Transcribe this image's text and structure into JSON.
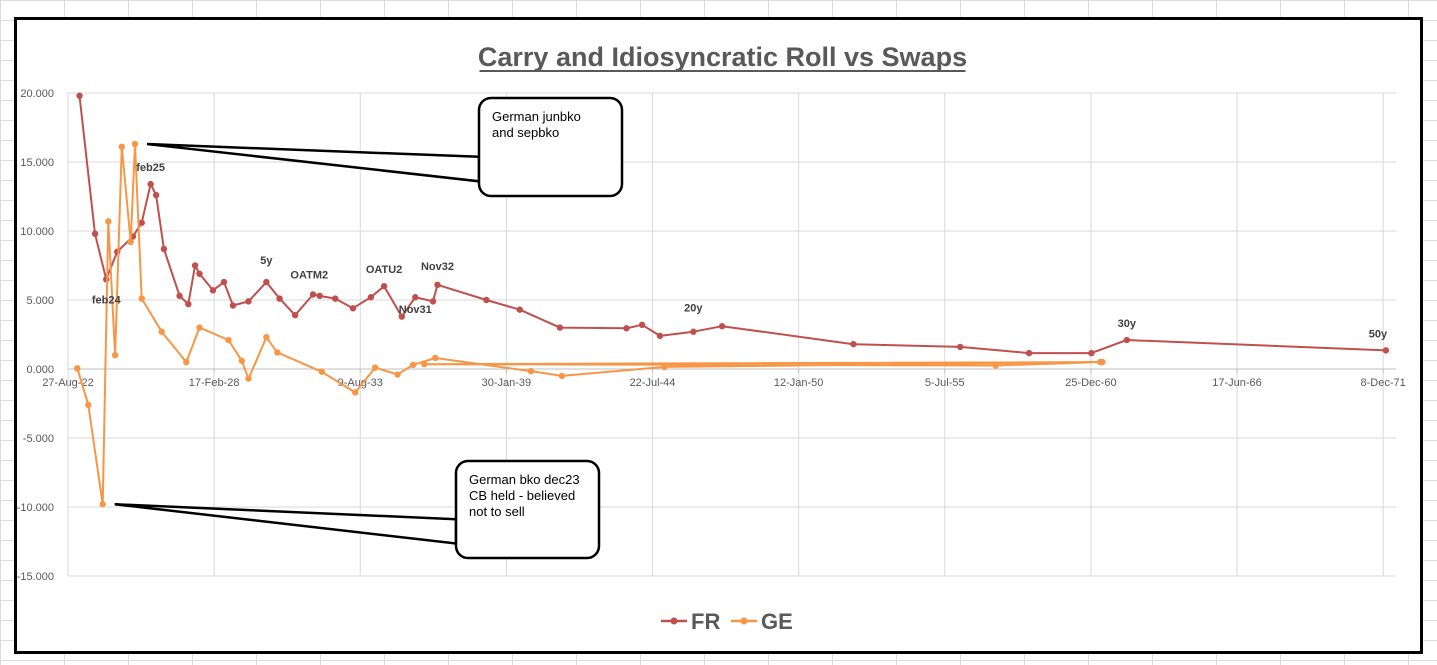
{
  "chart_data": {
    "type": "line",
    "title": "Carry and Idiosyncratic Roll vs Swaps",
    "xlabel": "",
    "ylabel": "",
    "x_axis_type": "date",
    "xlim": [
      "2022-08-27",
      "2072-06-01"
    ],
    "ylim": [
      -15,
      20
    ],
    "x_ticks": [
      "27-Aug-22",
      "17-Feb-28",
      "9-Aug-33",
      "30-Jan-39",
      "22-Jul-44",
      "12-Jan-50",
      "5-Jul-55",
      "25-Dec-60",
      "17-Jun-66",
      "8-Dec-71"
    ],
    "y_ticks": [
      "20.000",
      "15.000",
      "10.000",
      "5.000",
      "0.000",
      "-5.000",
      "-10.000",
      "-15.000"
    ],
    "gridlines": "both",
    "legend_position": "bottom",
    "series": [
      {
        "name": "FR",
        "color": "#c0504d",
        "points": [
          [
            "2023-02-01",
            19.8
          ],
          [
            "2023-09-01",
            9.8
          ],
          [
            "2024-02-01",
            6.5
          ],
          [
            "2024-07-01",
            8.5
          ],
          [
            "2025-02-01",
            9.6
          ],
          [
            "2025-06-01",
            10.6
          ],
          [
            "2025-10-01",
            13.4
          ],
          [
            "2025-12-15",
            12.6
          ],
          [
            "2026-04-01",
            8.7
          ],
          [
            "2026-11-01",
            5.3
          ],
          [
            "2027-03-01",
            4.7
          ],
          [
            "2027-06-01",
            7.5
          ],
          [
            "2027-08-01",
            6.9
          ],
          [
            "2028-02-01",
            5.7
          ],
          [
            "2028-07-01",
            6.3
          ],
          [
            "2028-11-01",
            4.6
          ],
          [
            "2029-06-01",
            4.9
          ],
          [
            "2030-02-01",
            6.3
          ],
          [
            "2030-08-01",
            5.1
          ],
          [
            "2031-03-01",
            3.9
          ],
          [
            "2031-11-01",
            5.4
          ],
          [
            "2032-02-01",
            5.3
          ],
          [
            "2032-09-01",
            5.1
          ],
          [
            "2033-05-01",
            4.4
          ],
          [
            "2034-01-01",
            5.2
          ],
          [
            "2034-07-01",
            6.0
          ],
          [
            "2035-03-01",
            3.8
          ],
          [
            "2035-09-01",
            5.2
          ],
          [
            "2036-05-01",
            4.9
          ],
          [
            "2036-07-01",
            6.1
          ],
          [
            "2038-05-01",
            5.0
          ],
          [
            "2039-08-01",
            4.3
          ],
          [
            "2041-02-01",
            3.0
          ],
          [
            "2043-08-01",
            2.95
          ],
          [
            "2044-03-01",
            3.2
          ],
          [
            "2044-11-01",
            2.4
          ],
          [
            "2046-02-01",
            2.7
          ],
          [
            "2047-03-01",
            3.1
          ],
          [
            "2052-02-01",
            1.8
          ],
          [
            "2056-02-01",
            1.6
          ],
          [
            "2058-09-01",
            1.15
          ],
          [
            "2061-01-01",
            1.15
          ],
          [
            "2062-05-01",
            2.1
          ],
          [
            "2072-01-15",
            1.35
          ]
        ]
      },
      {
        "name": "GE",
        "color": "#f79646",
        "points": [
          [
            "2023-01-01",
            0.05
          ],
          [
            "2023-06-01",
            -2.6
          ],
          [
            "2023-12-15",
            -9.8
          ],
          [
            "2024-03-01",
            10.7
          ],
          [
            "2024-06-01",
            1.0
          ],
          [
            "2024-09-01",
            16.1
          ],
          [
            "2025-01-01",
            9.2
          ],
          [
            "2025-03-01",
            16.3
          ],
          [
            "2025-06-01",
            5.1
          ],
          [
            "2026-03-01",
            2.7
          ],
          [
            "2027-02-01",
            0.5
          ],
          [
            "2027-08-01",
            3.0
          ],
          [
            "2028-09-01",
            2.1
          ],
          [
            "2029-03-01",
            0.6
          ],
          [
            "2029-06-01",
            -0.7
          ],
          [
            "2030-02-01",
            2.3
          ],
          [
            "2030-07-01",
            1.2
          ],
          [
            "2032-03-01",
            -0.2
          ],
          [
            "2033-06-01",
            -1.7
          ],
          [
            "2034-03-01",
            0.1
          ],
          [
            "2035-01-01",
            -0.4
          ],
          [
            "2035-08-01",
            0.3
          ],
          [
            "2036-06-01",
            0.8
          ],
          [
            "2040-01-01",
            -0.15
          ],
          [
            "2041-03-01",
            -0.5
          ],
          [
            "2045-01-01",
            0.15
          ],
          [
            "2061-05-01",
            0.5
          ],
          [
            "2057-06-01",
            0.25
          ],
          [
            "2036-01-01",
            0.35
          ],
          [
            "2061-06-01",
            0.5
          ]
        ]
      }
    ],
    "point_labels": [
      {
        "series": "FR",
        "x": "2024-02-01",
        "y": 6.5,
        "text": "feb24"
      },
      {
        "series": "FR",
        "x": "2025-10-01",
        "y": 13.4,
        "text": "feb25"
      },
      {
        "series": "FR",
        "x": "2030-02-01",
        "y": 6.3,
        "text": "5y"
      },
      {
        "series": "FR",
        "x": "2032-09-01",
        "y": 5.1,
        "text": "OATM2"
      },
      {
        "series": "FR",
        "x": "2034-07-01",
        "y": 6.0,
        "text": "OATU2"
      },
      {
        "series": "FR",
        "x": "2035-09-01",
        "y": 5.2,
        "text": "Nov31"
      },
      {
        "series": "FR",
        "x": "2036-07-01",
        "y": 6.1,
        "text": "Nov32"
      },
      {
        "series": "FR",
        "x": "2046-02-01",
        "y": 2.7,
        "text": "20y"
      },
      {
        "series": "FR",
        "x": "2062-05-01",
        "y": 2.1,
        "text": "30y"
      },
      {
        "series": "FR",
        "x": "2072-01-15",
        "y": 1.35,
        "text": "50y"
      }
    ],
    "annotations": [
      {
        "id": "callout-top",
        "text": [
          "German junbko",
          "and sepbko"
        ],
        "target_series": "GE",
        "target_x": "2025-03-01",
        "target_y": 16.3
      },
      {
        "id": "callout-bottom",
        "text": [
          "German bko dec23",
          "CB held - believed",
          "not to sell"
        ],
        "target_series": "GE",
        "target_x": "2023-12-15",
        "target_y": -9.8
      }
    ]
  }
}
